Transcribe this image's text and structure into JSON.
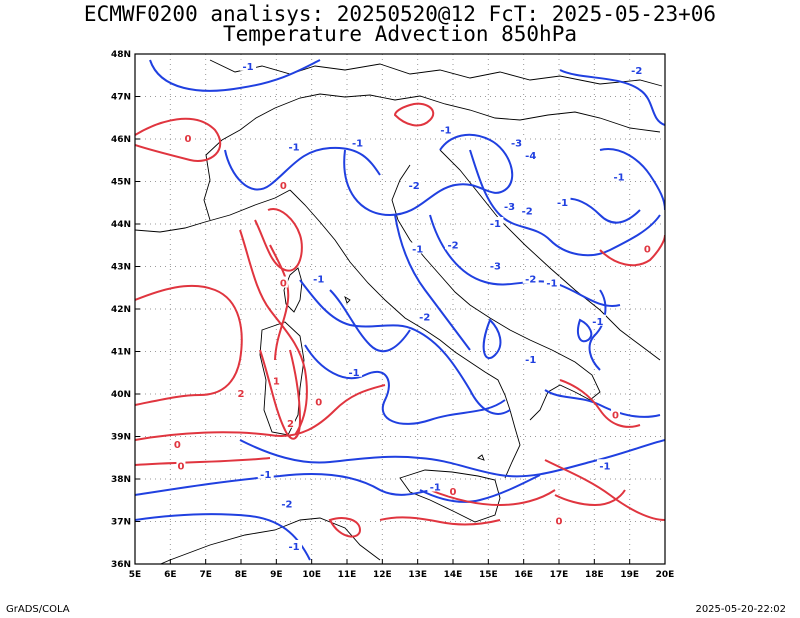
{
  "header": {
    "line1": "ECMWF0200 analisys: 20250520@12 FcT: 2025-05-23+06",
    "line2": "Temperature Advection 850hPa"
  },
  "footer": {
    "left": "GrADS/COLA",
    "right": "2025-05-20-22:02"
  },
  "map": {
    "lon_ticks": [
      "5E",
      "6E",
      "7E",
      "8E",
      "9E",
      "10E",
      "11E",
      "12E",
      "13E",
      "14E",
      "15E",
      "16E",
      "17E",
      "18E",
      "19E",
      "20E"
    ],
    "lat_ticks": [
      "48N",
      "47N",
      "46N",
      "45N",
      "44N",
      "43N",
      "42N",
      "41N",
      "40N",
      "39N",
      "38N",
      "37N",
      "36N"
    ],
    "lon_range": [
      5,
      20
    ],
    "lat_range": [
      36,
      48
    ],
    "colors": {
      "positive": "#e0353f",
      "negative": "#2040e0",
      "coast": "#000000",
      "grid": "#9a9a9a"
    },
    "contour_labels": [
      {
        "text": "-1",
        "lon": 8.2,
        "lat": 47.7,
        "sign": "neg"
      },
      {
        "text": "-2",
        "lon": 19.2,
        "lat": 47.6,
        "sign": "neg"
      },
      {
        "text": "0",
        "lon": 6.5,
        "lat": 46.0,
        "sign": "pos"
      },
      {
        "text": "-1",
        "lon": 9.5,
        "lat": 45.8,
        "sign": "neg"
      },
      {
        "text": "-1",
        "lon": 11.3,
        "lat": 45.9,
        "sign": "neg"
      },
      {
        "text": "-1",
        "lon": 13.8,
        "lat": 46.2,
        "sign": "neg"
      },
      {
        "text": "-3",
        "lon": 15.8,
        "lat": 45.9,
        "sign": "neg"
      },
      {
        "text": "-4",
        "lon": 16.2,
        "lat": 45.6,
        "sign": "neg"
      },
      {
        "text": "-1",
        "lon": 18.7,
        "lat": 45.1,
        "sign": "neg"
      },
      {
        "text": "0",
        "lon": 9.2,
        "lat": 44.9,
        "sign": "pos"
      },
      {
        "text": "-2",
        "lon": 12.9,
        "lat": 44.9,
        "sign": "neg"
      },
      {
        "text": "-3",
        "lon": 15.6,
        "lat": 44.4,
        "sign": "neg"
      },
      {
        "text": "-2",
        "lon": 16.1,
        "lat": 44.3,
        "sign": "neg"
      },
      {
        "text": "-1",
        "lon": 17.1,
        "lat": 44.5,
        "sign": "neg"
      },
      {
        "text": "-1",
        "lon": 15.2,
        "lat": 44.0,
        "sign": "neg"
      },
      {
        "text": "-2",
        "lon": 14.0,
        "lat": 43.5,
        "sign": "neg"
      },
      {
        "text": "0",
        "lon": 19.5,
        "lat": 43.4,
        "sign": "pos"
      },
      {
        "text": "-1",
        "lon": 13.0,
        "lat": 43.4,
        "sign": "neg"
      },
      {
        "text": "-3",
        "lon": 15.2,
        "lat": 43.0,
        "sign": "neg"
      },
      {
        "text": "-2",
        "lon": 16.2,
        "lat": 42.7,
        "sign": "neg"
      },
      {
        "text": "-1",
        "lon": 16.8,
        "lat": 42.6,
        "sign": "neg"
      },
      {
        "text": "0",
        "lon": 9.2,
        "lat": 42.6,
        "sign": "pos"
      },
      {
        "text": "-1",
        "lon": 10.2,
        "lat": 42.7,
        "sign": "neg"
      },
      {
        "text": "-2",
        "lon": 13.2,
        "lat": 41.8,
        "sign": "neg"
      },
      {
        "text": "-1",
        "lon": 18.1,
        "lat": 41.7,
        "sign": "neg"
      },
      {
        "text": "-1",
        "lon": 16.2,
        "lat": 40.8,
        "sign": "neg"
      },
      {
        "text": "-1",
        "lon": 11.2,
        "lat": 40.5,
        "sign": "neg"
      },
      {
        "text": "1",
        "lon": 9.0,
        "lat": 40.3,
        "sign": "pos"
      },
      {
        "text": "2",
        "lon": 8.0,
        "lat": 40.0,
        "sign": "pos"
      },
      {
        "text": "2",
        "lon": 9.4,
        "lat": 39.3,
        "sign": "pos"
      },
      {
        "text": "0",
        "lon": 10.2,
        "lat": 39.8,
        "sign": "pos"
      },
      {
        "text": "0",
        "lon": 18.6,
        "lat": 39.5,
        "sign": "pos"
      },
      {
        "text": "0",
        "lon": 6.2,
        "lat": 38.8,
        "sign": "pos"
      },
      {
        "text": "0",
        "lon": 6.3,
        "lat": 38.3,
        "sign": "pos"
      },
      {
        "text": "-1",
        "lon": 8.7,
        "lat": 38.1,
        "sign": "neg"
      },
      {
        "text": "-1",
        "lon": 18.3,
        "lat": 38.3,
        "sign": "neg"
      },
      {
        "text": "-1",
        "lon": 13.5,
        "lat": 37.8,
        "sign": "neg"
      },
      {
        "text": "0",
        "lon": 14.0,
        "lat": 37.7,
        "sign": "pos"
      },
      {
        "text": "-2",
        "lon": 9.3,
        "lat": 37.4,
        "sign": "neg"
      },
      {
        "text": "0",
        "lon": 17.0,
        "lat": 37.0,
        "sign": "pos"
      },
      {
        "text": "-1",
        "lon": 9.5,
        "lat": 36.4,
        "sign": "neg"
      }
    ]
  }
}
